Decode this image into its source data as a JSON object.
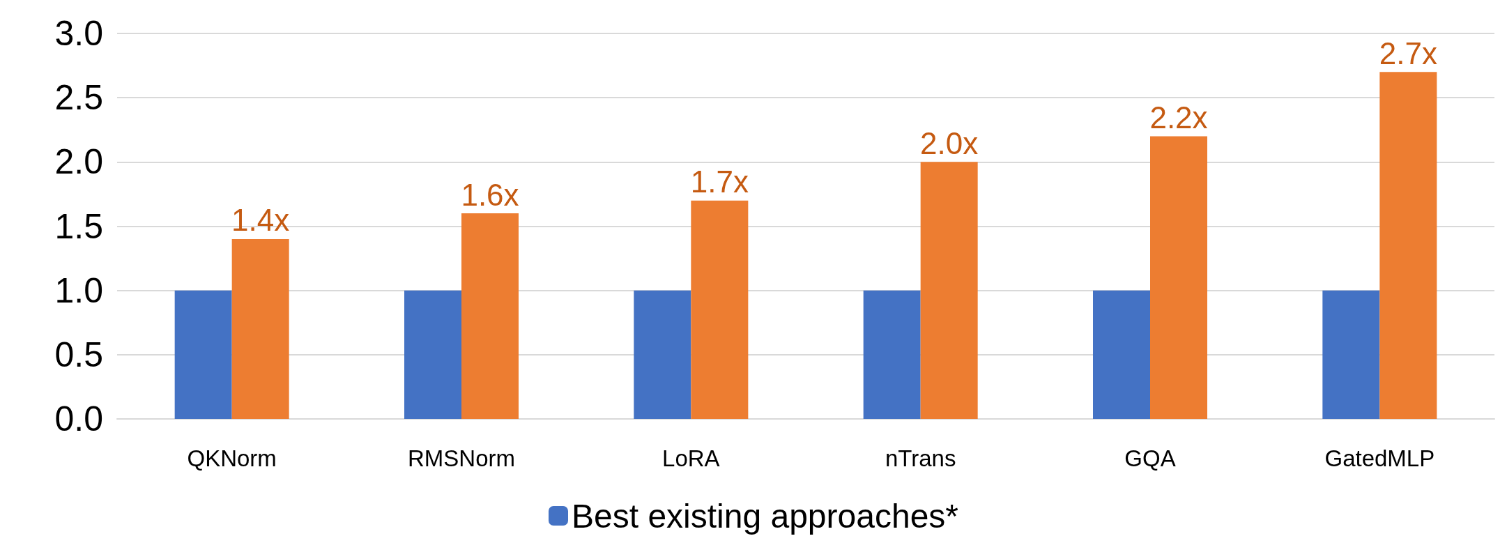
{
  "chart_data": {
    "type": "bar",
    "categories": [
      "QKNorm",
      "RMSNorm",
      "LoRA",
      "nTrans",
      "GQA",
      "GatedMLP"
    ],
    "series": [
      {
        "name": "Best existing approaches*",
        "color": "#4472c4",
        "values": [
          1.0,
          1.0,
          1.0,
          1.0,
          1.0,
          1.0
        ]
      },
      {
        "color": "#ed7d31",
        "values": [
          1.4,
          1.6,
          1.7,
          2.0,
          2.2,
          2.7
        ],
        "value_labels": [
          "1.4x",
          "1.6x",
          "1.7x",
          "2.0x",
          "2.2x",
          "2.7x"
        ]
      }
    ],
    "ylim": [
      0,
      3
    ],
    "yticks": [
      {
        "value": 0,
        "label": "0.0"
      },
      {
        "value": 0.5,
        "label": "0.5"
      },
      {
        "value": 1,
        "label": "1.0"
      },
      {
        "value": 1.5,
        "label": "1.5"
      },
      {
        "value": 2,
        "label": "2.0"
      },
      {
        "value": 2.5,
        "label": "2.5"
      },
      {
        "value": 3,
        "label": "3.0"
      }
    ],
    "grid": "y",
    "legend": "bottom"
  }
}
